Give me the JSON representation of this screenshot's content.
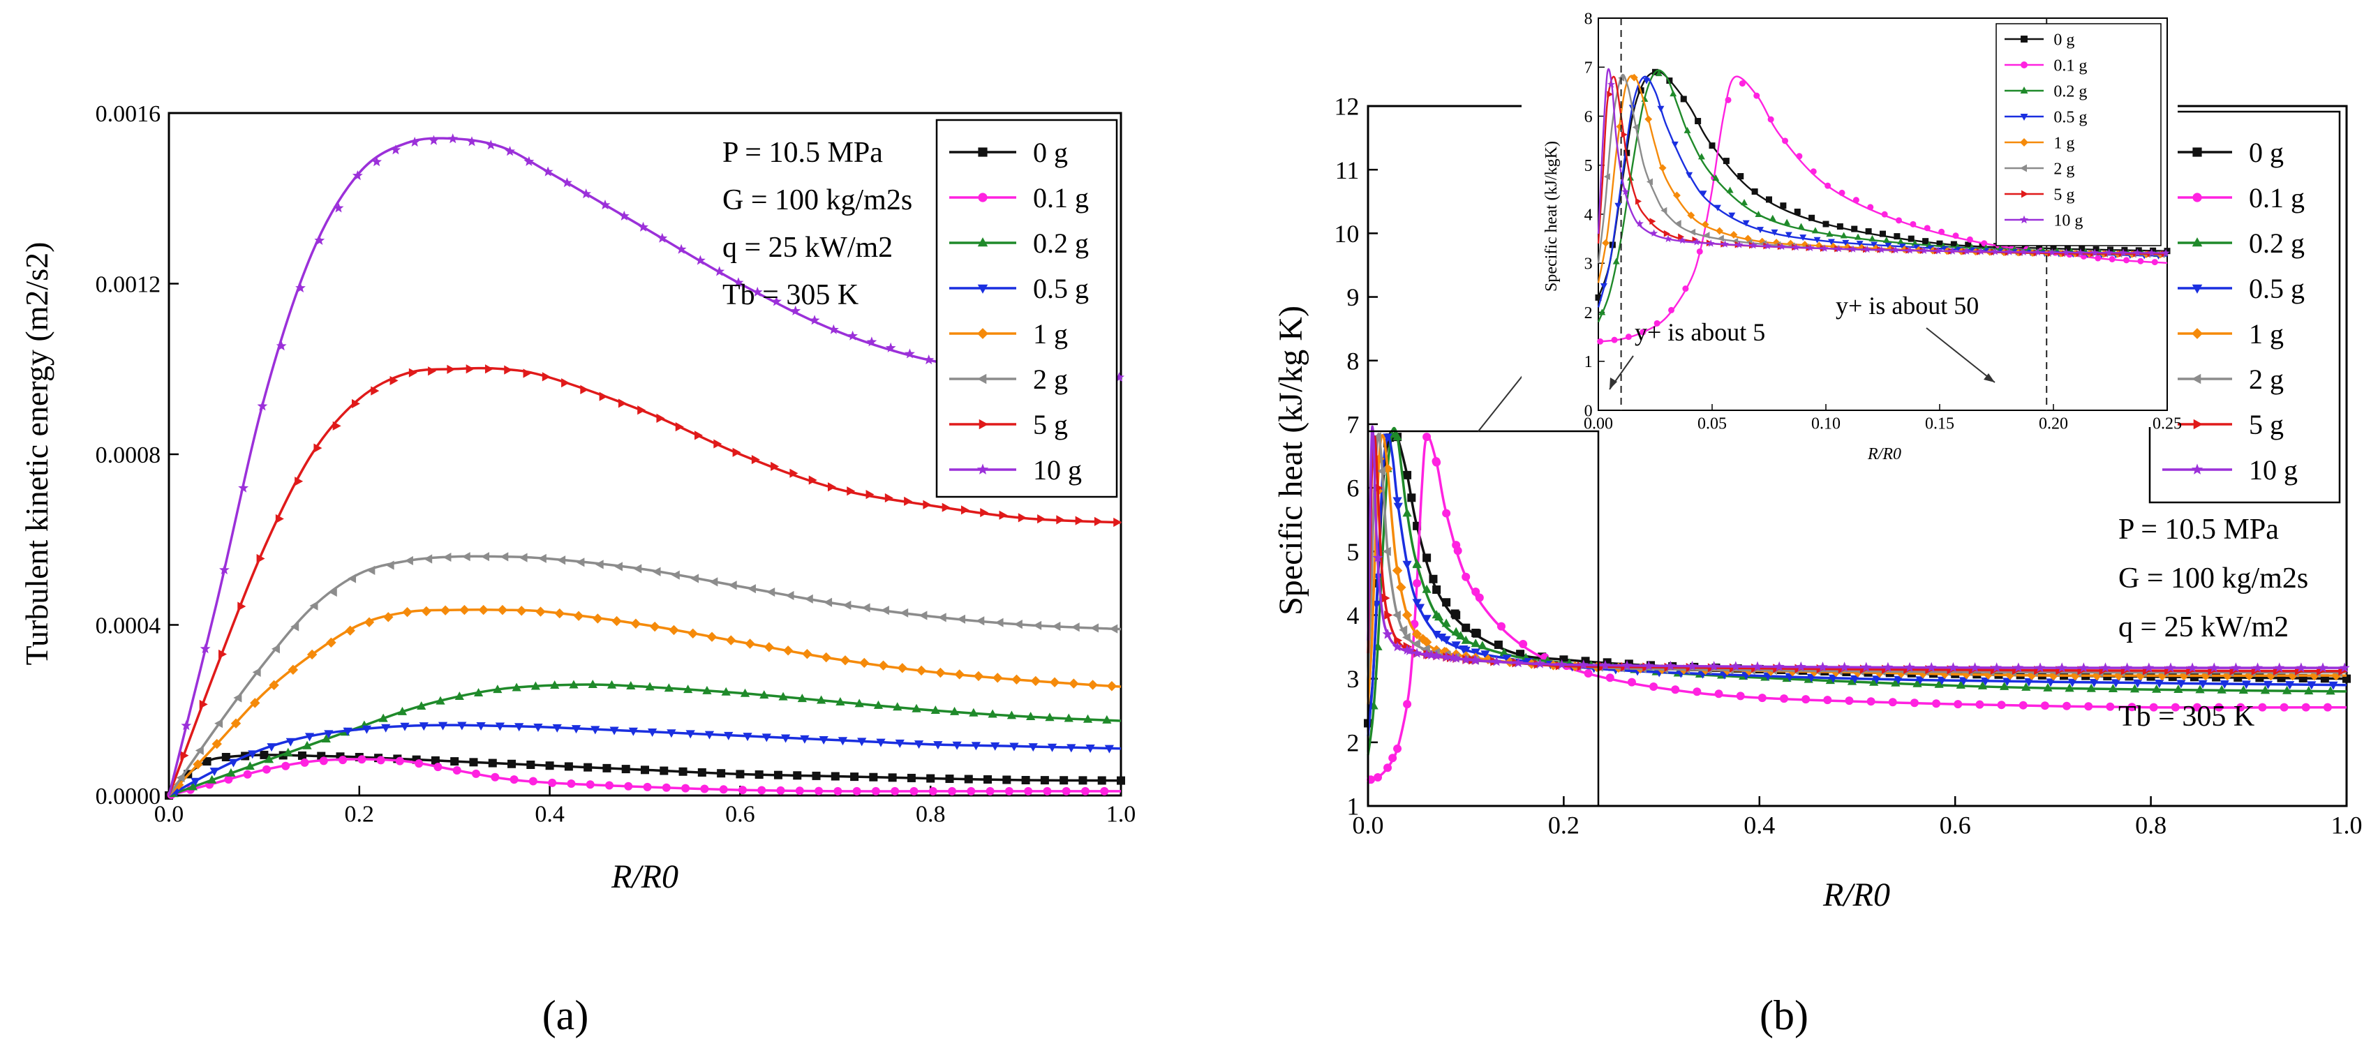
{
  "panel_labels": [
    "(a)",
    "(b)"
  ],
  "chart_data": [
    {
      "id": "a",
      "type": "line",
      "title": "",
      "xlabel": "R/R0",
      "ylabel": "Turbulent kinetic energy (m2/s2)",
      "xlim": [
        0,
        1.0
      ],
      "ylim": [
        0,
        0.0016
      ],
      "xticks": [
        "0.0",
        "0.2",
        "0.4",
        "0.6",
        "0.8",
        "1.0"
      ],
      "yticks": [
        "0.0000",
        "0.0004",
        "0.0008",
        "0.0012",
        "0.0016"
      ],
      "legend": [
        "0 g",
        "0.1 g",
        "0.2 g",
        "0.5 g",
        "1 g",
        "2 g",
        "5 g",
        "10 g"
      ],
      "annotations": [
        "P = 10.5 MPa",
        "G = 100 kg/m2s",
        "q = 25 kW/m2",
        "Tb = 305 K"
      ],
      "series": [
        {
          "name": "0 g",
          "color": "#111111",
          "marker": "square",
          "x": [
            0,
            0.02,
            0.04,
            0.06,
            0.1,
            0.15,
            0.2,
            0.3,
            0.4,
            0.5,
            0.6,
            0.7,
            0.8,
            0.9,
            1.0
          ],
          "y": [
            0,
            5e-05,
            8e-05,
            9e-05,
            9.5e-05,
            9.3e-05,
            9e-05,
            8e-05,
            7e-05,
            6e-05,
            5e-05,
            4.5e-05,
            4e-05,
            3.6e-05,
            3.5e-05
          ]
        },
        {
          "name": "0.1 g",
          "color": "#ff22e0",
          "marker": "circle",
          "x": [
            0,
            0.05,
            0.1,
            0.15,
            0.2,
            0.25,
            0.3,
            0.35,
            0.4,
            0.5,
            0.6,
            0.7,
            0.8,
            0.9,
            1.0
          ],
          "y": [
            0,
            3e-05,
            6e-05,
            8e-05,
            8.5e-05,
            8e-05,
            6e-05,
            4e-05,
            3e-05,
            2e-05,
            1.3e-05,
            1e-05,
            1e-05,
            1e-05,
            1e-05
          ]
        },
        {
          "name": "0.2 g",
          "color": "#1f8a2a",
          "marker": "triangle-up",
          "x": [
            0,
            0.05,
            0.1,
            0.15,
            0.2,
            0.25,
            0.3,
            0.35,
            0.4,
            0.45,
            0.5,
            0.6,
            0.7,
            0.8,
            0.9,
            1.0
          ],
          "y": [
            0,
            4e-05,
            8e-05,
            0.00012,
            0.00016,
            0.0002,
            0.00023,
            0.00025,
            0.000258,
            0.00026,
            0.000255,
            0.00024,
            0.00022,
            0.0002,
            0.000185,
            0.000175
          ]
        },
        {
          "name": "0.5 g",
          "color": "#1a2fe0",
          "marker": "triangle-down",
          "x": [
            0,
            0.05,
            0.1,
            0.15,
            0.2,
            0.25,
            0.3,
            0.35,
            0.4,
            0.5,
            0.6,
            0.7,
            0.8,
            0.9,
            1.0
          ],
          "y": [
            0,
            6e-05,
            0.00011,
            0.00014,
            0.000155,
            0.000163,
            0.000165,
            0.000163,
            0.00016,
            0.00015,
            0.00014,
            0.00013,
            0.00012,
            0.000115,
            0.00011
          ]
        },
        {
          "name": "1 g",
          "color": "#f58a0a",
          "marker": "diamond",
          "x": [
            0,
            0.05,
            0.1,
            0.15,
            0.2,
            0.25,
            0.3,
            0.35,
            0.4,
            0.5,
            0.6,
            0.7,
            0.8,
            0.9,
            1.0
          ],
          "y": [
            0,
            0.00012,
            0.00024,
            0.00033,
            0.0004,
            0.00043,
            0.000435,
            0.000435,
            0.00043,
            0.0004,
            0.00036,
            0.00032,
            0.00029,
            0.00027,
            0.000255
          ]
        },
        {
          "name": "2 g",
          "color": "#8c8c8c",
          "marker": "triangle-left",
          "x": [
            0,
            0.05,
            0.1,
            0.15,
            0.2,
            0.25,
            0.3,
            0.35,
            0.4,
            0.5,
            0.6,
            0.7,
            0.8,
            0.9,
            1.0
          ],
          "y": [
            0,
            0.00016,
            0.00031,
            0.00044,
            0.00052,
            0.00055,
            0.00056,
            0.00056,
            0.000555,
            0.00053,
            0.00049,
            0.00045,
            0.00042,
            0.0004,
            0.00039
          ]
        },
        {
          "name": "5 g",
          "color": "#e01a1a",
          "marker": "triangle-right",
          "x": [
            0,
            0.05,
            0.1,
            0.15,
            0.2,
            0.25,
            0.3,
            0.35,
            0.4,
            0.5,
            0.6,
            0.7,
            0.8,
            0.9,
            1.0
          ],
          "y": [
            0,
            0.0003,
            0.00058,
            0.0008,
            0.00093,
            0.00099,
            0.001,
            0.001,
            0.00098,
            0.0009,
            0.0008,
            0.00072,
            0.00068,
            0.00065,
            0.00064
          ]
        },
        {
          "name": "10 g",
          "color": "#9b30d9",
          "marker": "star",
          "x": [
            0,
            0.05,
            0.1,
            0.15,
            0.2,
            0.25,
            0.3,
            0.35,
            0.4,
            0.5,
            0.6,
            0.7,
            0.8,
            0.9,
            1.0
          ],
          "y": [
            0,
            0.00045,
            0.00093,
            0.00127,
            0.00146,
            0.00153,
            0.00154,
            0.00152,
            0.00146,
            0.00133,
            0.0012,
            0.00109,
            0.00102,
            0.00099,
            0.00098
          ]
        }
      ]
    },
    {
      "id": "b",
      "type": "line",
      "title": "",
      "xlabel": "R/R0",
      "ylabel": "Specific heat  (kJ/kg K)",
      "xlim": [
        0,
        1.0
      ],
      "ylim": [
        1,
        12
      ],
      "xticks": [
        "0.0",
        "0.2",
        "0.4",
        "0.6",
        "0.8",
        "1.0"
      ],
      "yticks": [
        "1",
        "2",
        "3",
        "4",
        "5",
        "6",
        "7",
        "8",
        "9",
        "10",
        "11",
        "12"
      ],
      "legend": [
        "0 g",
        "0.1 g",
        "0.2 g",
        "0.5 g",
        "1 g",
        "2 g",
        "5 g",
        "10 g"
      ],
      "annotations": [
        "P = 10.5 MPa",
        "G = 100 kg/m2s",
        "q = 25 kW/m2",
        "Tb = 305 K"
      ],
      "zoom_box_x": [
        0,
        0.235
      ],
      "series": [
        {
          "name": "0 g",
          "color": "#111111",
          "marker": "square",
          "x": [
            0,
            0.005,
            0.01,
            0.015,
            0.02,
            0.025,
            0.03,
            0.04,
            0.05,
            0.07,
            0.1,
            0.15,
            0.2,
            0.3,
            0.5,
            0.7,
            1.0
          ],
          "y": [
            2.3,
            3.0,
            4.5,
            6.0,
            6.7,
            6.9,
            6.8,
            6.2,
            5.4,
            4.4,
            3.8,
            3.4,
            3.3,
            3.2,
            3.1,
            3.05,
            3.0
          ]
        },
        {
          "name": "0.1 g",
          "color": "#ff22e0",
          "marker": "circle",
          "x": [
            0,
            0.01,
            0.02,
            0.03,
            0.04,
            0.045,
            0.05,
            0.055,
            0.06,
            0.07,
            0.08,
            0.1,
            0.13,
            0.17,
            0.22,
            0.3,
            0.4,
            0.6,
            0.8,
            1.0
          ],
          "y": [
            1.4,
            1.45,
            1.6,
            1.9,
            2.6,
            3.3,
            4.5,
            6.0,
            6.8,
            6.4,
            5.6,
            4.6,
            3.9,
            3.4,
            3.1,
            2.85,
            2.7,
            2.6,
            2.55,
            2.55
          ]
        },
        {
          "name": "0.2 g",
          "color": "#1f8a2a",
          "marker": "triangle-up",
          "x": [
            0,
            0.005,
            0.01,
            0.015,
            0.02,
            0.025,
            0.03,
            0.035,
            0.04,
            0.05,
            0.07,
            0.1,
            0.15,
            0.2,
            0.3,
            0.5,
            0.7,
            1.0
          ],
          "y": [
            1.8,
            2.4,
            3.5,
            5.0,
            6.3,
            6.9,
            6.8,
            6.2,
            5.6,
            4.8,
            4.0,
            3.6,
            3.35,
            3.25,
            3.1,
            2.95,
            2.85,
            2.8
          ]
        },
        {
          "name": "0.5 g",
          "color": "#1a2fe0",
          "marker": "triangle-down",
          "x": [
            0,
            0.005,
            0.01,
            0.015,
            0.02,
            0.025,
            0.03,
            0.04,
            0.05,
            0.07,
            0.1,
            0.15,
            0.2,
            0.3,
            0.5,
            0.7,
            1.0
          ],
          "y": [
            2.1,
            3.0,
            4.6,
            6.2,
            6.8,
            6.5,
            5.8,
            4.8,
            4.2,
            3.7,
            3.45,
            3.3,
            3.2,
            3.1,
            3.0,
            2.95,
            2.9
          ]
        },
        {
          "name": "1 g",
          "color": "#f58a0a",
          "marker": "diamond",
          "x": [
            0,
            0.004,
            0.008,
            0.012,
            0.016,
            0.02,
            0.025,
            0.03,
            0.04,
            0.05,
            0.07,
            0.1,
            0.15,
            0.2,
            0.3,
            0.5,
            0.7,
            1.0
          ],
          "y": [
            2.6,
            3.6,
            5.3,
            6.6,
            6.8,
            6.3,
            5.4,
            4.7,
            4.0,
            3.7,
            3.45,
            3.35,
            3.25,
            3.2,
            3.15,
            3.1,
            3.05,
            3.05
          ]
        },
        {
          "name": "2 g",
          "color": "#8c8c8c",
          "marker": "triangle-left",
          "x": [
            0,
            0.003,
            0.006,
            0.01,
            0.013,
            0.016,
            0.02,
            0.025,
            0.03,
            0.04,
            0.06,
            0.1,
            0.15,
            0.2,
            0.3,
            0.5,
            0.7,
            1.0
          ],
          "y": [
            3.0,
            4.2,
            5.8,
            6.8,
            6.6,
            5.9,
            5.0,
            4.4,
            4.0,
            3.65,
            3.45,
            3.3,
            3.25,
            3.2,
            3.15,
            3.12,
            3.1,
            3.1
          ]
        },
        {
          "name": "5 g",
          "color": "#e01a1a",
          "marker": "triangle-right",
          "x": [
            0,
            0.002,
            0.004,
            0.007,
            0.01,
            0.013,
            0.016,
            0.02,
            0.03,
            0.05,
            0.1,
            0.15,
            0.2,
            0.3,
            0.5,
            0.7,
            1.0
          ],
          "y": [
            3.4,
            4.8,
            6.3,
            6.8,
            6.0,
            5.0,
            4.4,
            4.0,
            3.6,
            3.4,
            3.3,
            3.25,
            3.2,
            3.18,
            3.15,
            3.13,
            3.12
          ]
        },
        {
          "name": "10 g",
          "color": "#9b30d9",
          "marker": "star",
          "x": [
            0,
            0.002,
            0.004,
            0.006,
            0.008,
            0.011,
            0.015,
            0.02,
            0.03,
            0.05,
            0.1,
            0.15,
            0.2,
            0.3,
            0.5,
            0.7,
            1.0
          ],
          "y": [
            3.6,
            5.5,
            6.9,
            6.6,
            5.5,
            4.6,
            4.0,
            3.7,
            3.5,
            3.4,
            3.3,
            3.25,
            3.22,
            3.2,
            3.18,
            3.17,
            3.17
          ]
        }
      ]
    },
    {
      "id": "b-inset",
      "type": "line",
      "title": "",
      "xlabel": "R/R0",
      "ylabel": "Specific heat (kJ/kgK)",
      "xlim": [
        0,
        0.25
      ],
      "ylim": [
        0,
        8
      ],
      "xticks": [
        "0.00",
        "0.05",
        "0.10",
        "0.15",
        "0.20",
        "0.25"
      ],
      "yticks": [
        "0",
        "1",
        "2",
        "3",
        "4",
        "5",
        "6",
        "7",
        "8"
      ],
      "legend": [
        "0 g",
        "0.1 g",
        "0.2 g",
        "0.5 g",
        "1 g",
        "2 g",
        "5 g",
        "10 g"
      ],
      "annotations": [
        "y+ is about 5",
        "y+ is about 50"
      ],
      "vlines": [
        0.01,
        0.197
      ],
      "uses_series_of": "b"
    }
  ]
}
